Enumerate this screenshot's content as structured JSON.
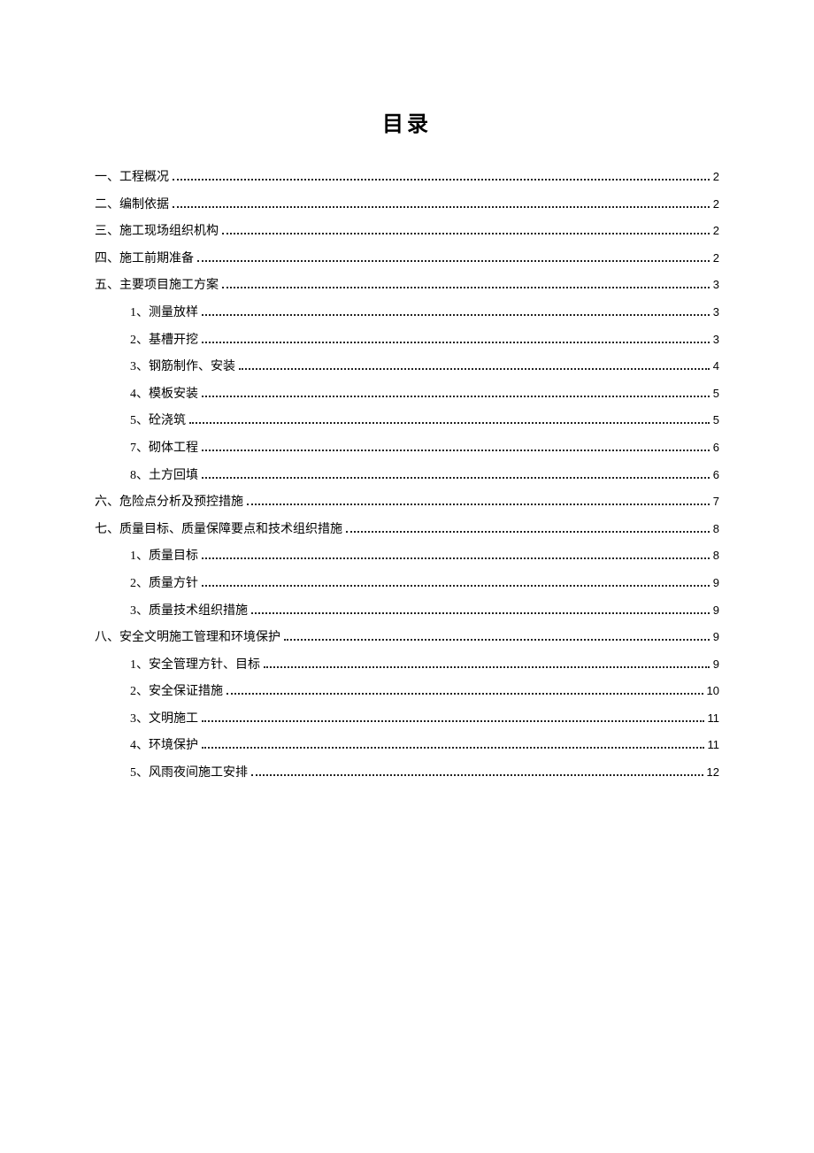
{
  "title": "目录",
  "entries": [
    {
      "level": 1,
      "label": "一、工程概况",
      "page": "2"
    },
    {
      "level": 1,
      "label": "二、编制依据",
      "page": "2"
    },
    {
      "level": 1,
      "label": "三、施工现场组织机构",
      "page": "2"
    },
    {
      "level": 1,
      "label": "四、施工前期准备",
      "page": "2"
    },
    {
      "level": 1,
      "label": "五、主要项目施工方案",
      "page": "3"
    },
    {
      "level": 2,
      "label": "1、测量放样",
      "page": "3"
    },
    {
      "level": 2,
      "label": "2、基槽开挖",
      "page": "3"
    },
    {
      "level": 2,
      "label": "3、钢筋制作、安装",
      "page": "4"
    },
    {
      "level": 2,
      "label": "4、模板安装",
      "page": "5"
    },
    {
      "level": 2,
      "label": "5、砼浇筑",
      "page": "5"
    },
    {
      "level": 2,
      "label": "7、砌体工程",
      "page": "6"
    },
    {
      "level": 2,
      "label": "8、土方回填",
      "page": "6"
    },
    {
      "level": 1,
      "label": "六、危险点分析及预控措施",
      "page": "7"
    },
    {
      "level": 1,
      "label": "七、质量目标、质量保障要点和技术组织措施",
      "page": "8"
    },
    {
      "level": 2,
      "label": "1、质量目标",
      "page": "8"
    },
    {
      "level": 2,
      "label": "2、质量方针",
      "page": "9"
    },
    {
      "level": 2,
      "label": "3、质量技术组织措施",
      "page": "9"
    },
    {
      "level": 1,
      "label": "八、安全文明施工管理和环境保护",
      "page": "9"
    },
    {
      "level": 2,
      "label": "1、安全管理方针、目标",
      "page": "9"
    },
    {
      "level": 2,
      "label": "2、安全保证措施",
      "page": "10"
    },
    {
      "level": 2,
      "label": "3、文明施工",
      "page": "11"
    },
    {
      "level": 2,
      "label": "4、环境保护",
      "page": "11"
    },
    {
      "level": 2,
      "label": "5、风雨夜间施工安排",
      "page": "12"
    }
  ],
  "dot_widths_level1": {
    "short": 395,
    "medium": 350,
    "long": 310,
    "xlong": 220,
    "xxlong": 130
  }
}
